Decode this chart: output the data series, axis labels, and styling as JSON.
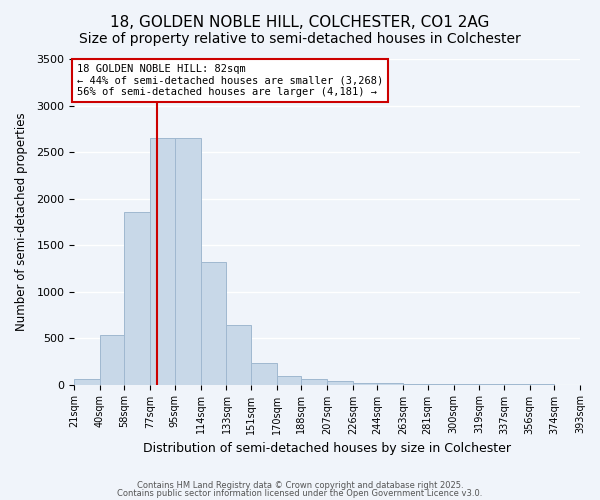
{
  "title_line1": "18, GOLDEN NOBLE HILL, COLCHESTER, CO1 2AG",
  "title_line2": "Size of property relative to semi-detached houses in Colchester",
  "xlabel": "Distribution of semi-detached houses by size in Colchester",
  "ylabel": "Number of semi-detached properties",
  "bin_labels": [
    "21sqm",
    "40sqm",
    "58sqm",
    "77sqm",
    "95sqm",
    "114sqm",
    "133sqm",
    "151sqm",
    "170sqm",
    "188sqm",
    "207sqm",
    "226sqm",
    "244sqm",
    "263sqm",
    "281sqm",
    "300sqm",
    "319sqm",
    "337sqm",
    "356sqm",
    "374sqm",
    "393sqm"
  ],
  "bin_edges": [
    21,
    40,
    58,
    77,
    95,
    114,
    133,
    151,
    170,
    188,
    207,
    226,
    244,
    263,
    281,
    300,
    319,
    337,
    356,
    374,
    393
  ],
  "bar_heights": [
    65,
    530,
    1850,
    2650,
    2650,
    1320,
    640,
    235,
    95,
    55,
    40,
    20,
    15,
    8,
    5,
    3,
    2,
    1,
    1,
    0
  ],
  "bar_color": "#c8d8e8",
  "bar_edgecolor": "#a0b8d0",
  "property_size": 82,
  "vline_x": 82,
  "vline_color": "#cc0000",
  "annotation_title": "18 GOLDEN NOBLE HILL: 82sqm",
  "annotation_line2": "← 44% of semi-detached houses are smaller (3,268)",
  "annotation_line3": "56% of semi-detached houses are larger (4,181) →",
  "annotation_box_color": "#cc0000",
  "annotation_fill": "#ffffff",
  "ylim": [
    0,
    3500
  ],
  "yticks": [
    0,
    500,
    1000,
    1500,
    2000,
    2500,
    3000,
    3500
  ],
  "footer_line1": "Contains HM Land Registry data © Crown copyright and database right 2025.",
  "footer_line2": "Contains public sector information licensed under the Open Government Licence v3.0.",
  "background_color": "#f0f4fa",
  "grid_color": "#ffffff",
  "title_fontsize": 11,
  "subtitle_fontsize": 10
}
